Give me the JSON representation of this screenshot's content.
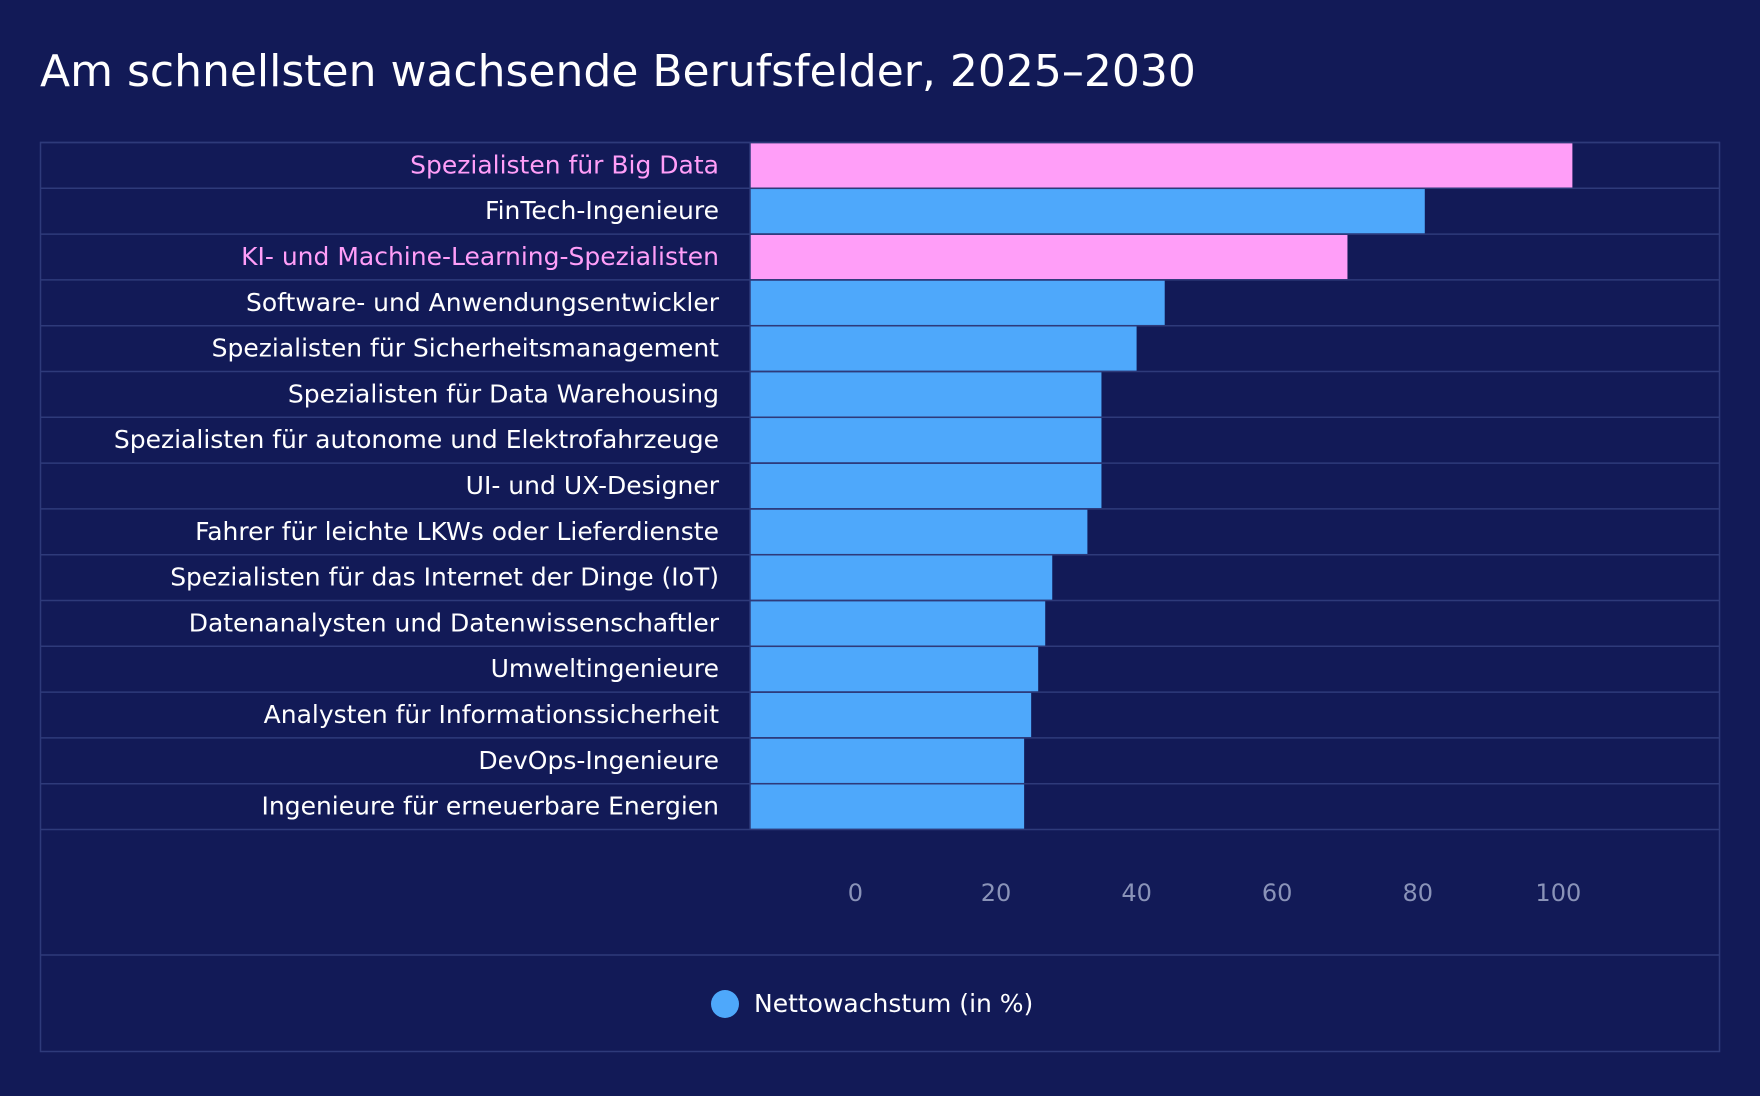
{
  "chart_data": {
    "type": "barh",
    "title": "Am schnellsten wachsende Berufsfelder, 2025–2030",
    "categories": [
      "Spezialisten für Big Data",
      "FinTech-Ingenieure",
      "KI- und Machine-Learning-Spezialisten",
      "Software- und Anwendungsentwickler",
      "Spezialisten für Sicherheitsmanagement",
      "Spezialisten für Data Warehousing",
      "Spezialisten für autonome und Elektrofahrzeuge",
      "UI- und UX-Designer",
      "Fahrer für leichte LKWs oder Lieferdienste",
      "Spezialisten für das Internet der Dinge (IoT)",
      "Datenanalysten und Datenwissenschaftler",
      "Umweltingenieure",
      "Analysten für Informationssicherheit",
      "DevOps-Ingenieure",
      "Ingenieure für erneuerbare Energien"
    ],
    "series": [
      {
        "name": "Nettowachstum (in %)",
        "color": "#4ea8fb",
        "values": [
          102,
          81,
          70,
          44,
          40,
          35,
          35,
          35,
          33,
          28,
          27,
          26,
          25,
          24,
          24
        ],
        "colors": [
          "#ff9ef8",
          "#4ea8fb",
          "#ff9ef8",
          "#4ea8fb",
          "#4ea8fb",
          "#4ea8fb",
          "#4ea8fb",
          "#4ea8fb",
          "#4ea8fb",
          "#4ea8fb",
          "#4ea8fb",
          "#4ea8fb",
          "#4ea8fb",
          "#4ea8fb",
          "#4ea8fb"
        ]
      }
    ],
    "xlim": [
      -15,
      123
    ],
    "xticks": [
      0,
      20,
      40,
      60,
      80,
      100
    ],
    "grid": false,
    "legend": "bottom"
  }
}
